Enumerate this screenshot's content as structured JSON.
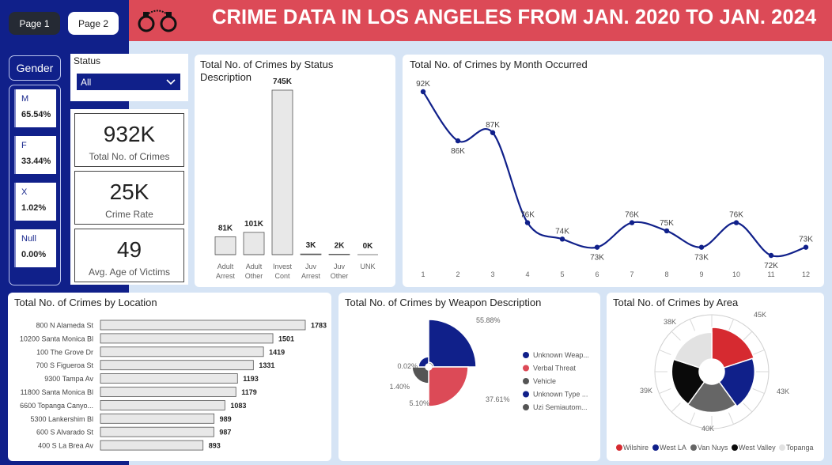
{
  "header": {
    "title": "CRIME DATA IN LOS ANGELES FROM JAN. 2020 TO JAN. 2024",
    "pages": [
      "Page 1",
      "Page 2"
    ],
    "icon": "handcuffs-icon",
    "colors": {
      "sidebar": "#10208a",
      "header": "#dc4a57",
      "background": "#d6e4f5"
    }
  },
  "gender": {
    "label": "Gender",
    "items": [
      {
        "label": "M",
        "value": "65.54%"
      },
      {
        "label": "F",
        "value": "33.44%"
      },
      {
        "label": "X",
        "value": "1.02%"
      },
      {
        "label": "Null",
        "value": "0.00%"
      }
    ]
  },
  "status_filter": {
    "label": "Status",
    "value": "All"
  },
  "kpis": [
    {
      "value": "932K",
      "label": "Total No. of Crimes"
    },
    {
      "value": "25K",
      "label": "Crime Rate"
    },
    {
      "value": "49",
      "label": "Avg. Age of Victims"
    }
  ],
  "chart_data": [
    {
      "type": "bar",
      "title": "Total No. of Crimes by Status Description",
      "categories": [
        "Adult Arrest",
        "Adult Other",
        "Invest Cont",
        "Juv Arrest",
        "Juv Other",
        "UNK"
      ],
      "values": [
        81,
        101,
        745,
        3,
        2,
        0
      ],
      "data_labels": [
        "81K",
        "101K",
        "745K",
        "3K",
        "2K",
        "0K"
      ],
      "unit": "thousands",
      "color": "#e8e8e8"
    },
    {
      "type": "line",
      "title": "Total No. of Crimes by Month Occurred",
      "x": [
        1,
        2,
        3,
        4,
        5,
        6,
        7,
        8,
        9,
        10,
        11,
        12
      ],
      "values": [
        92,
        86,
        87,
        76,
        74,
        73,
        76,
        75,
        73,
        76,
        72,
        73
      ],
      "data_labels": [
        "92K",
        "86K",
        "87K",
        "76K",
        "74K",
        "73K",
        "76K",
        "75K",
        "73K",
        "76K",
        "72K",
        "73K"
      ],
      "unit": "thousands",
      "color": "#10208a"
    },
    {
      "type": "bar",
      "orientation": "horizontal",
      "title": "Total No. of Crimes by Location",
      "categories": [
        "800 N Alameda St",
        "10200 Santa Monica Bl",
        "100 The Grove Dr",
        "700 S Figueroa St",
        "9300 Tampa Av",
        "11800 Santa Monica Bl",
        "6600 Topanga Canyo...",
        "5300 Lankershim Bl",
        "600 S Alvarado St",
        "400 S La Brea Av"
      ],
      "values": [
        1783,
        1501,
        1419,
        1331,
        1193,
        1179,
        1083,
        989,
        987,
        893
      ],
      "color": "#e8e8e8"
    },
    {
      "type": "pie",
      "variant": "rose",
      "title": "Total No. of Crimes by Weapon Description",
      "categories": [
        "Unknown Weap...",
        "Verbal Threat",
        "Vehicle",
        "Unknown Type ...",
        "Uzi Semiautom..."
      ],
      "values": [
        55.88,
        37.61,
        5.1,
        1.4,
        0.02
      ],
      "data_labels": [
        "55.88%",
        "37.61%",
        "5.10%",
        "1.40%",
        "0.02%"
      ],
      "colors": [
        "#10208a",
        "#dc4a57",
        "#555555",
        "#10208a",
        "#555555"
      ],
      "legend": "right"
    },
    {
      "type": "pie",
      "variant": "donut",
      "title": "Total No. of Crimes by Area",
      "categories": [
        "Wilshire",
        "West LA",
        "Van Nuys",
        "West Valley",
        "Topanga"
      ],
      "values": [
        45,
        43,
        40,
        39,
        38
      ],
      "data_labels": [
        "45K",
        "43K",
        "40K",
        "39K",
        "38K"
      ],
      "unit": "thousands",
      "colors": [
        "#d62a30",
        "#10208a",
        "#666666",
        "#0a0a0a",
        "#e2e2e2"
      ],
      "legend": "bottom"
    }
  ]
}
